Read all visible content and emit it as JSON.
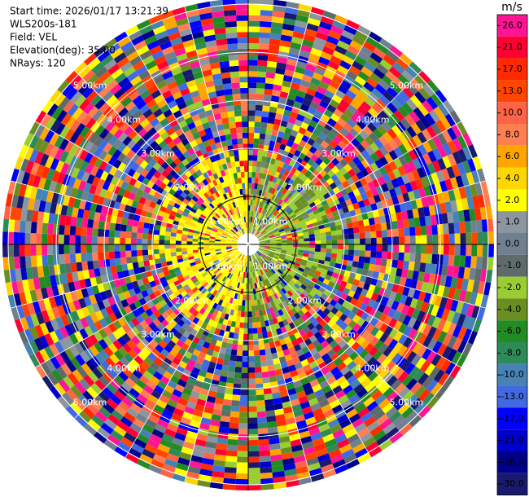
{
  "chart_data": {
    "type": "ppi",
    "info": [
      "Start time: 2026/01/17 13:21:39",
      "WLS200s-181",
      "Field: VEL",
      "Elevation(deg): 35.00",
      "NRays: 120"
    ],
    "range_rings": [
      {
        "value": 1,
        "label": "1.00km"
      },
      {
        "value": 2,
        "label": "2.00km"
      },
      {
        "value": 3,
        "label": "3.00km"
      },
      {
        "value": 4,
        "label": "4.00km"
      },
      {
        "value": 5,
        "label": "5.00km"
      }
    ],
    "colorbar": {
      "label": "m/s",
      "ticks": [
        {
          "value": 26,
          "label": "26.0"
        },
        {
          "value": 21,
          "label": "21.0"
        },
        {
          "value": 17,
          "label": "17.0"
        },
        {
          "value": 13,
          "label": "13.0"
        },
        {
          "value": 10,
          "label": "10.0"
        },
        {
          "value": 8,
          "label": "8.0"
        },
        {
          "value": 6,
          "label": "6.0"
        },
        {
          "value": 4,
          "label": "4.0"
        },
        {
          "value": 2,
          "label": "2.0"
        },
        {
          "value": 1,
          "label": "1.0"
        },
        {
          "value": 0,
          "label": "0.0"
        },
        {
          "value": -1,
          "label": "-1.0"
        },
        {
          "value": -2,
          "label": "-2.0"
        },
        {
          "value": -4,
          "label": "-4.0"
        },
        {
          "value": -6,
          "label": "-6.0"
        },
        {
          "value": -8,
          "label": "-8.0"
        },
        {
          "value": -10,
          "label": "-10.0"
        },
        {
          "value": -13,
          "label": "-13.0"
        },
        {
          "value": -17,
          "label": "-17.0"
        },
        {
          "value": -21,
          "label": "-21.0"
        },
        {
          "value": -26,
          "label": "-26.0"
        },
        {
          "value": -30,
          "label": "-30.0"
        }
      ],
      "colors": [
        "#ff1493",
        "#ff0033",
        "#ff2a00",
        "#ff4500",
        "#ff6347",
        "#ff7f50",
        "#ffa500",
        "#ffd700",
        "#ffff00",
        "#8c96a0",
        "#708090",
        "#5f6a6a",
        "#9acd32",
        "#6b8e23",
        "#228b22",
        "#2e8b57",
        "#4682b4",
        "#4169e1",
        "#0000ff",
        "#0000cd",
        "#00008b",
        "#191970"
      ]
    }
  }
}
